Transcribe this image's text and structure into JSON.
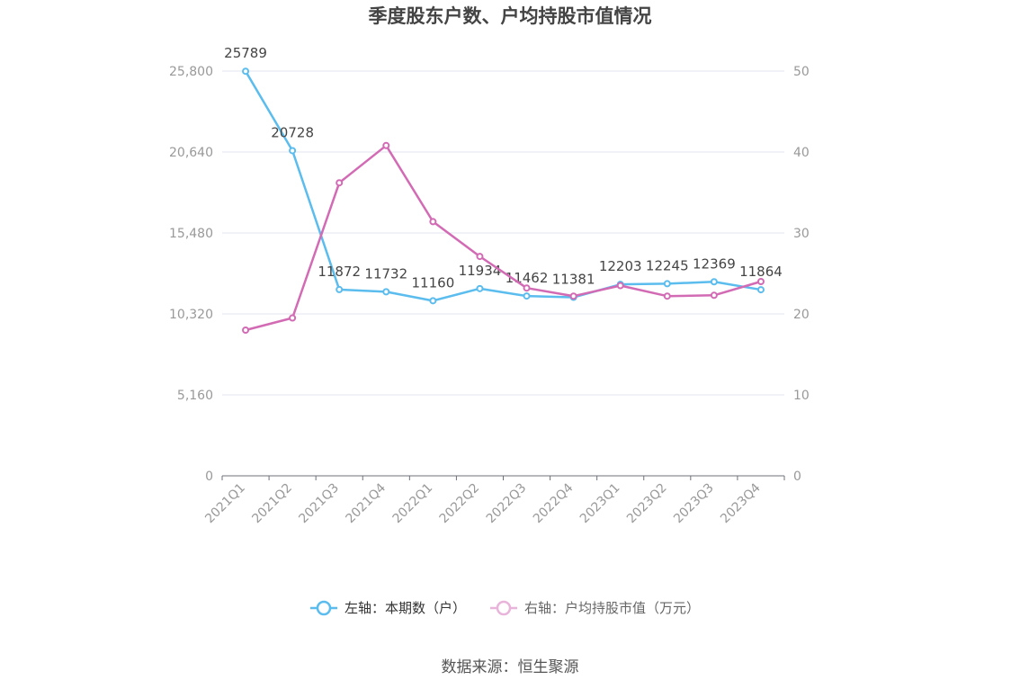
{
  "chart_data": {
    "type": "line",
    "title": "季度股东户数、户均持股市值情况",
    "categories": [
      "2021Q1",
      "2021Q2",
      "2021Q3",
      "2021Q4",
      "2022Q1",
      "2022Q2",
      "2022Q3",
      "2022Q4",
      "2023Q1",
      "2023Q2",
      "2023Q3",
      "2023Q4"
    ],
    "left_axis": {
      "ticks": [
        "0",
        "5,160",
        "10,320",
        "15,480",
        "20,640",
        "25,800"
      ],
      "ylim": [
        0,
        25800
      ]
    },
    "right_axis": {
      "ticks": [
        "0",
        "10",
        "20",
        "30",
        "40",
        "50"
      ],
      "ylim": [
        0,
        50
      ]
    },
    "series": [
      {
        "name": "左轴：本期数（户）",
        "axis": "left",
        "color": "#5bbcee",
        "values": [
          25789,
          20728,
          11872,
          11732,
          11160,
          11934,
          11462,
          11381,
          12203,
          12245,
          12369,
          11864
        ],
        "labels": [
          "25789",
          "20728",
          "11872",
          "11732",
          "11160",
          "11934",
          "11462",
          "11381",
          "12203",
          "12245",
          "12369",
          "11864"
        ]
      },
      {
        "name": "右轴：户均持股市值（万元）",
        "axis": "right",
        "color": "#d26bb4",
        "values": [
          18.0,
          19.5,
          36.2,
          40.8,
          31.4,
          27.1,
          23.2,
          22.2,
          23.5,
          22.2,
          22.3,
          24.0
        ]
      }
    ],
    "legend_position": "bottom",
    "grid": true
  },
  "source": "数据来源：恒生聚源"
}
